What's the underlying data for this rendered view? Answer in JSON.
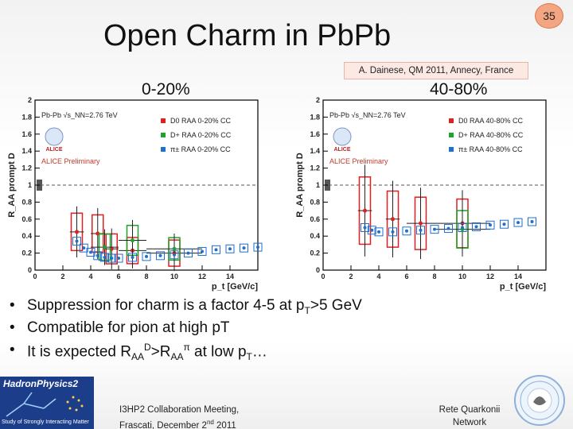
{
  "slide": {
    "title": "Open Charm in PbPb",
    "page_number": "35",
    "citation": "A. Dainese, QM 2011, Annecy, France"
  },
  "bullets": [
    {
      "text": "Suppression for charm is a  factor 4-5 at p",
      "sub": "T",
      "tail": ">5 GeV"
    },
    {
      "text": "Compatible for pion at high pT"
    },
    {
      "pre": "It is expected R",
      "sub1": "AA",
      "sup1": "D",
      "mid": ">R",
      "sub2": "AA",
      "sup2": "π",
      "post": " at low p",
      "sub3": "T",
      "end": "…"
    }
  ],
  "footer": {
    "logo_left_name": "HadronPhysics2",
    "logo_left_tag": "Study of Strongly Interacting Matter",
    "meeting_line1": "I3HP2 Collaboration Meeting,",
    "meeting_line2_pre": "Frascati, December 2",
    "meeting_line2_sup": "nd",
    "meeting_line2_post": " 2011",
    "network_line1": "Rete Quarkonii",
    "network_line2": "Network"
  },
  "colors": {
    "d0": "#e02020",
    "dplus": "#1fa32a",
    "pion": "#1f6fd0",
    "badge": "#f4a582"
  },
  "chart_data": [
    {
      "type": "scatter",
      "panel_label": "0-20%",
      "ylabel": "R_AA prompt D",
      "xlabel": "p_t [GeV/c]",
      "xlim": [
        0,
        16
      ],
      "ylim": [
        0,
        2
      ],
      "xticks": [
        "0",
        "2",
        "4",
        "6",
        "8",
        "10",
        "12",
        "14"
      ],
      "yticks": [
        "0",
        "0.2",
        "0.4",
        "0.6",
        "0.8",
        "1",
        "1.2",
        "1.4",
        "1.6",
        "1.8",
        "2"
      ],
      "system_label": "Pb-Pb   √s_NN=2.76 TeV",
      "logo_text": "ALICE",
      "preliminary": "ALICE Preliminary",
      "series": [
        {
          "name": "D0",
          "legend": "D0 RAA 0-20% CC",
          "color_key": "d0",
          "points": [
            {
              "x": 3,
              "y": 0.45
            },
            {
              "x": 4.5,
              "y": 0.43
            },
            {
              "x": 5.5,
              "y": 0.25
            },
            {
              "x": 7,
              "y": 0.23
            },
            {
              "x": 10,
              "y": 0.2
            }
          ],
          "xerr": [
            0.5,
            0.5,
            0.5,
            1,
            2
          ],
          "yerr": [
            0.1,
            0.1,
            0.08,
            0.07,
            0.07
          ]
        },
        {
          "name": "D+",
          "legend": "D+ RAA 0-20% CC",
          "color_key": "dplus",
          "points": [
            {
              "x": 5,
              "y": 0.27
            },
            {
              "x": 7,
              "y": 0.35
            },
            {
              "x": 10,
              "y": 0.25
            }
          ],
          "xerr": [
            1,
            1,
            2
          ],
          "yerr": [
            0.07,
            0.08,
            0.06
          ]
        },
        {
          "name": "pi+-",
          "legend": "π± RAA 0-20% CC",
          "color_key": "pion",
          "points": [
            {
              "x": 3,
              "y": 0.34
            },
            {
              "x": 3.5,
              "y": 0.26
            },
            {
              "x": 4,
              "y": 0.21
            },
            {
              "x": 4.5,
              "y": 0.17
            },
            {
              "x": 5,
              "y": 0.15
            },
            {
              "x": 5.5,
              "y": 0.14
            },
            {
              "x": 6,
              "y": 0.14
            },
            {
              "x": 7,
              "y": 0.15
            },
            {
              "x": 8,
              "y": 0.16
            },
            {
              "x": 9,
              "y": 0.17
            },
            {
              "x": 10,
              "y": 0.18
            },
            {
              "x": 11,
              "y": 0.2
            },
            {
              "x": 12,
              "y": 0.22
            },
            {
              "x": 13,
              "y": 0.24
            },
            {
              "x": 14,
              "y": 0.25
            },
            {
              "x": 15,
              "y": 0.26
            },
            {
              "x": 16,
              "y": 0.27
            }
          ]
        }
      ]
    },
    {
      "type": "scatter",
      "panel_label": "40-80%",
      "ylabel": "R_AA prompt D",
      "xlabel": "p_t [GeV/c]",
      "xlim": [
        0,
        16
      ],
      "ylim": [
        0,
        2
      ],
      "xticks": [
        "0",
        "2",
        "4",
        "6",
        "8",
        "10",
        "12",
        "14"
      ],
      "yticks": [
        "0",
        "0.2",
        "0.4",
        "0.6",
        "0.8",
        "1",
        "1.2",
        "1.4",
        "1.6",
        "1.8",
        "2"
      ],
      "system_label": "Pb-Pb   √s_NN=2.76 TeV",
      "logo_text": "ALICE",
      "preliminary": "ALICE Preliminary",
      "series": [
        {
          "name": "D0",
          "legend": "D0 RAA 40-80% CC",
          "color_key": "d0",
          "points": [
            {
              "x": 3,
              "y": 0.7
            },
            {
              "x": 5,
              "y": 0.6
            },
            {
              "x": 7,
              "y": 0.55
            },
            {
              "x": 10,
              "y": 0.55
            }
          ],
          "xerr": [
            0.5,
            0.5,
            1,
            2
          ],
          "yerr": [
            0.18,
            0.15,
            0.14,
            0.13
          ]
        },
        {
          "name": "D+",
          "legend": "D+ RAA 40-80% CC",
          "color_key": "dplus",
          "points": [
            {
              "x": 10,
              "y": 0.48
            }
          ],
          "xerr": [
            2
          ],
          "yerr": [
            0.1
          ]
        },
        {
          "name": "pi+-",
          "legend": "π± RAA 40-80% CC",
          "color_key": "pion",
          "points": [
            {
              "x": 3,
              "y": 0.5
            },
            {
              "x": 3.5,
              "y": 0.47
            },
            {
              "x": 4,
              "y": 0.45
            },
            {
              "x": 5,
              "y": 0.45
            },
            {
              "x": 6,
              "y": 0.46
            },
            {
              "x": 7,
              "y": 0.47
            },
            {
              "x": 8,
              "y": 0.48
            },
            {
              "x": 9,
              "y": 0.49
            },
            {
              "x": 10,
              "y": 0.5
            },
            {
              "x": 11,
              "y": 0.51
            },
            {
              "x": 12,
              "y": 0.53
            },
            {
              "x": 13,
              "y": 0.54
            },
            {
              "x": 14,
              "y": 0.56
            },
            {
              "x": 15,
              "y": 0.57
            }
          ]
        }
      ]
    }
  ]
}
